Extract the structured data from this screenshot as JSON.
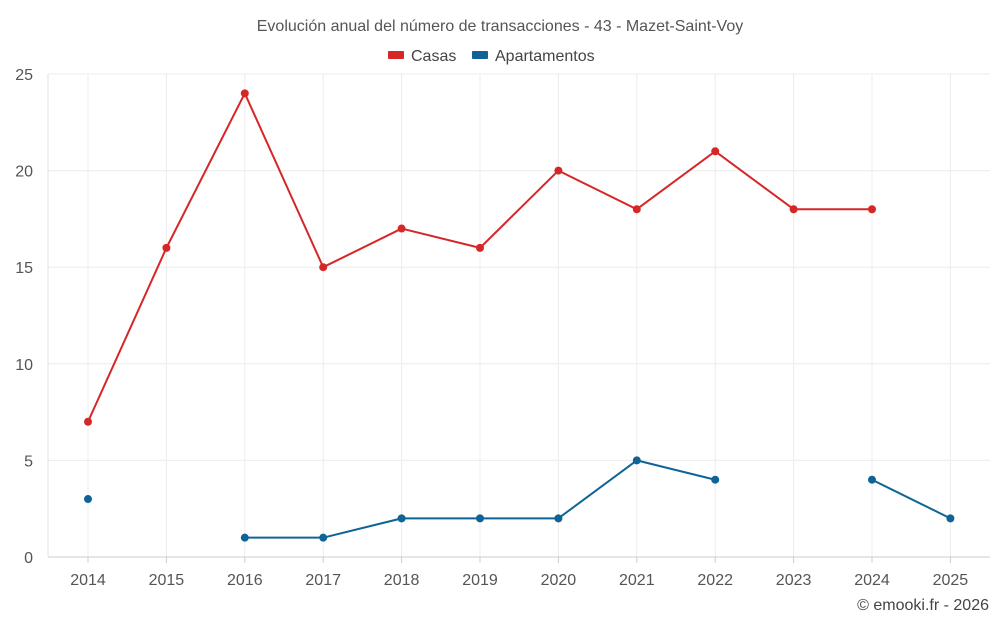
{
  "chart_data": {
    "type": "line",
    "title": "Evolución anual del número de transacciones - 43 - Mazet-Saint-Voy",
    "xlabel": "",
    "ylabel": "",
    "categories": [
      "2014",
      "2015",
      "2016",
      "2017",
      "2018",
      "2019",
      "2020",
      "2021",
      "2022",
      "2023",
      "2024",
      "2025"
    ],
    "ylim": [
      0,
      25
    ],
    "yticks": [
      0,
      5,
      10,
      15,
      20,
      25
    ],
    "grid": true,
    "legend_position": "top-center",
    "series": [
      {
        "name": "Casas",
        "color": "#d62728",
        "values": [
          7,
          16,
          24,
          15,
          17,
          16,
          20,
          18,
          21,
          18,
          18,
          null
        ]
      },
      {
        "name": "Apartamentos",
        "color": "#0e6496",
        "values": [
          3,
          null,
          1,
          1,
          2,
          2,
          2,
          5,
          4,
          null,
          4,
          2
        ]
      }
    ],
    "credit": "© emooki.fr - 2026"
  }
}
